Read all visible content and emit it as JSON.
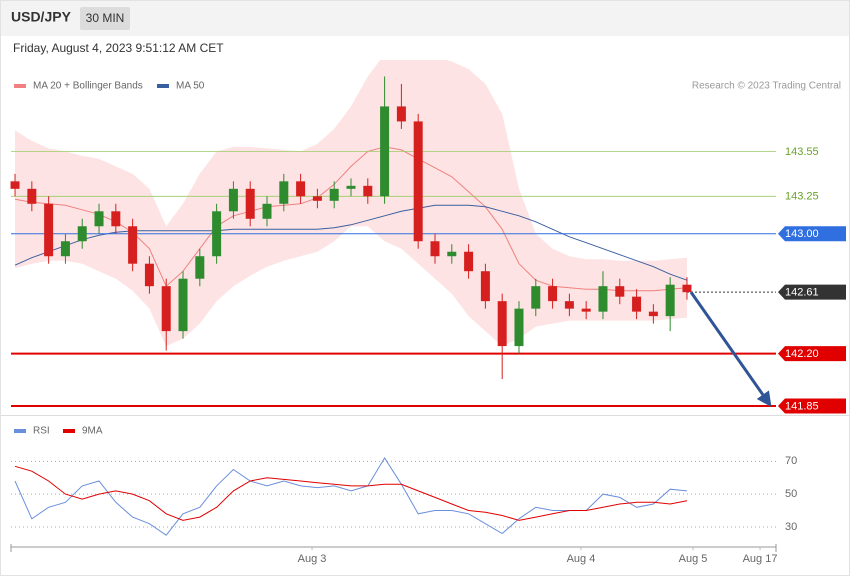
{
  "header": {
    "symbol": "USD/JPY",
    "interval": "30 MIN",
    "timestamp": "Friday, August 4, 2023 9:51:12 AM CET"
  },
  "chart_data": [
    {
      "type": "candlestick",
      "credit": "Research © 2023 Trading Central",
      "x": [
        0,
        1,
        2,
        3,
        4,
        5,
        6,
        7,
        8,
        9,
        10,
        11,
        12,
        13,
        14,
        15,
        16,
        17,
        18,
        19,
        20,
        21,
        22,
        23,
        24,
        25,
        26,
        27,
        28,
        29,
        30,
        31,
        32,
        33,
        34,
        35,
        36,
        37,
        38,
        39,
        40
      ],
      "open": [
        143.35,
        143.3,
        143.2,
        142.85,
        142.95,
        143.05,
        143.15,
        143.05,
        142.8,
        142.65,
        142.35,
        142.7,
        142.85,
        143.15,
        143.3,
        143.1,
        143.2,
        143.35,
        143.25,
        143.22,
        143.3,
        143.32,
        143.25,
        143.85,
        143.75,
        142.95,
        142.85,
        142.88,
        142.75,
        142.55,
        142.25,
        142.5,
        142.65,
        142.55,
        142.5,
        142.48,
        142.65,
        142.58,
        142.48,
        142.45,
        142.66
      ],
      "high": [
        143.4,
        143.35,
        143.25,
        143.0,
        143.1,
        143.2,
        143.2,
        143.1,
        142.85,
        142.7,
        142.75,
        142.9,
        143.2,
        143.35,
        143.35,
        143.25,
        143.4,
        143.4,
        143.3,
        143.35,
        143.37,
        143.37,
        144.05,
        144.0,
        143.8,
        143.0,
        142.93,
        142.93,
        142.8,
        142.6,
        142.55,
        142.7,
        142.7,
        142.6,
        142.55,
        142.75,
        142.7,
        142.63,
        142.53,
        142.71,
        142.71
      ],
      "low": [
        143.25,
        143.15,
        142.8,
        142.8,
        142.9,
        143.0,
        143.0,
        142.75,
        142.6,
        142.22,
        142.3,
        142.65,
        142.8,
        143.1,
        143.05,
        143.05,
        143.15,
        143.2,
        143.17,
        143.17,
        143.25,
        143.2,
        143.2,
        143.7,
        142.9,
        142.8,
        142.8,
        142.7,
        142.5,
        142.03,
        142.2,
        142.45,
        142.5,
        142.45,
        142.43,
        142.43,
        142.53,
        142.43,
        142.4,
        142.35,
        142.56
      ],
      "close": [
        143.3,
        143.2,
        142.85,
        142.95,
        143.05,
        143.15,
        143.05,
        142.8,
        142.65,
        142.35,
        142.7,
        142.85,
        143.15,
        143.3,
        143.1,
        143.2,
        143.35,
        143.25,
        143.22,
        143.3,
        143.32,
        143.25,
        143.85,
        143.75,
        142.95,
        142.85,
        142.88,
        142.75,
        142.55,
        142.25,
        142.5,
        142.65,
        142.55,
        142.5,
        142.48,
        142.65,
        142.58,
        142.48,
        142.45,
        142.66,
        142.61
      ],
      "up_color": "#2e8b2e",
      "down_color": "#d62020",
      "series": [
        {
          "name": "MA 20 + Bollinger Bands",
          "color": "#f08080",
          "band_color": "#fde3e3",
          "values": [
            143.23,
            143.21,
            143.2,
            143.19,
            143.16,
            143.13,
            143.08,
            143.01,
            142.9,
            142.65,
            142.75,
            142.9,
            143.05,
            143.12,
            143.15,
            143.18,
            143.19,
            143.2,
            143.24,
            143.33,
            143.45,
            143.55,
            143.58,
            143.56,
            143.5,
            143.44,
            143.38,
            143.28,
            143.18,
            143.03,
            142.8,
            142.69,
            142.65,
            142.64,
            142.63,
            142.63,
            142.62,
            142.62,
            142.62,
            142.63,
            142.64
          ],
          "upper": [
            143.69,
            143.62,
            143.57,
            143.55,
            143.52,
            143.5,
            143.45,
            143.4,
            143.3,
            143.05,
            143.2,
            143.4,
            143.55,
            143.58,
            143.58,
            143.57,
            143.56,
            143.55,
            143.6,
            143.7,
            143.85,
            144.05,
            144.2,
            144.22,
            144.2,
            144.18,
            144.15,
            144.1,
            144.0,
            143.8,
            143.3,
            143.0,
            142.9,
            142.85,
            142.83,
            142.83,
            142.82,
            142.82,
            142.82,
            142.83,
            142.84
          ],
          "lower": [
            142.77,
            142.8,
            142.82,
            142.82,
            142.8,
            142.75,
            142.7,
            142.62,
            142.5,
            142.25,
            142.3,
            142.4,
            142.55,
            142.65,
            142.72,
            142.78,
            142.82,
            142.85,
            142.88,
            142.95,
            143.05,
            143.05,
            142.95,
            142.9,
            142.8,
            142.7,
            142.6,
            142.45,
            142.35,
            142.25,
            142.3,
            142.38,
            142.4,
            142.42,
            142.42,
            142.42,
            142.42,
            142.42,
            142.42,
            142.43,
            142.44
          ]
        },
        {
          "name": "MA 50",
          "color": "#3a5fa0",
          "values": [
            142.79,
            142.84,
            142.88,
            142.92,
            142.96,
            142.99,
            143.01,
            143.02,
            143.02,
            143.02,
            143.02,
            143.02,
            143.02,
            143.03,
            143.03,
            143.03,
            143.03,
            143.03,
            143.03,
            143.04,
            143.06,
            143.09,
            143.12,
            143.15,
            143.17,
            143.19,
            143.19,
            143.19,
            143.18,
            143.15,
            143.12,
            143.08,
            143.03,
            142.98,
            142.94,
            142.9,
            142.86,
            142.82,
            142.78,
            142.73,
            142.69
          ]
        }
      ],
      "levels": [
        {
          "value": 143.55,
          "color": "#9ccc65",
          "boxed": false
        },
        {
          "value": 143.25,
          "color": "#9ccc65",
          "boxed": false
        },
        {
          "value": 143,
          "label": "143.00",
          "color": "#2f6fe0",
          "boxed": true
        },
        {
          "value": 142.61,
          "color": "#333333",
          "boxed": true,
          "line_style": "dotted"
        },
        {
          "value": 142.2,
          "label": "142.20",
          "color": "#e00000",
          "boxed": true
        },
        {
          "value": 141.85,
          "color": "#e00000",
          "boxed": true
        }
      ],
      "xlim": [
        -0.24,
        45.3
      ],
      "xticks": [
        {
          "value": 17.68,
          "label": "Aug 3"
        },
        {
          "value": 33.69,
          "label": "Aug 4"
        },
        {
          "value": 40.36,
          "label": "Aug 5"
        },
        {
          "value": 44.35,
          "label": "Aug 17"
        }
      ],
      "ylim": [
        141.79,
        144.16
      ]
    },
    {
      "type": "line",
      "x": [
        0,
        1,
        2,
        3,
        4,
        5,
        6,
        7,
        8,
        9,
        10,
        11,
        12,
        13,
        14,
        15,
        16,
        17,
        18,
        19,
        20,
        21,
        22,
        23,
        24,
        25,
        26,
        27,
        28,
        29,
        30,
        31,
        32,
        33,
        34,
        35,
        36,
        37,
        38,
        39,
        40
      ],
      "series": [
        {
          "name": "RSI",
          "color": "#6a8fdc",
          "values": [
            58,
            35,
            42,
            45,
            55,
            58,
            45,
            36,
            32,
            25,
            38,
            42,
            55,
            65,
            58,
            55,
            58,
            55,
            54,
            55,
            52,
            55,
            72,
            56,
            38,
            40,
            40,
            38,
            32,
            26,
            35,
            42,
            40,
            40,
            40,
            50,
            48,
            42,
            44,
            53,
            52
          ]
        },
        {
          "name": "9MA",
          "color": "#e00000",
          "values": [
            67,
            64,
            58,
            50,
            47,
            50,
            52,
            50,
            46,
            38,
            34,
            36,
            42,
            52,
            58,
            60,
            59,
            58,
            57,
            56,
            55,
            55,
            56,
            56,
            52,
            48,
            44,
            40,
            39,
            37,
            34,
            36,
            38,
            40,
            40,
            42,
            44,
            45,
            45,
            44,
            46
          ]
        }
      ],
      "ylim": [
        19,
        83
      ],
      "yticks": [
        30,
        50,
        70
      ],
      "grid": true
    }
  ]
}
